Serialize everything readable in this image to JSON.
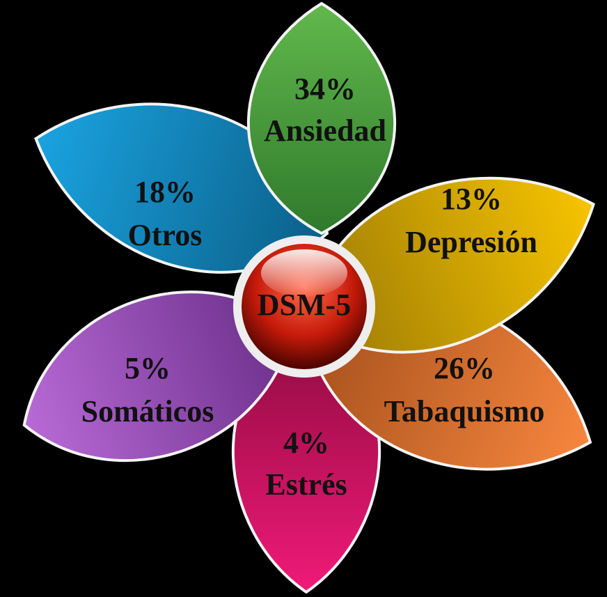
{
  "center": "DSM-5",
  "petals": [
    {
      "percent": "34%",
      "label": "Ansiedad"
    },
    {
      "percent": "13%",
      "label": "Depresión"
    },
    {
      "percent": "26%",
      "label": "Tabaquismo"
    },
    {
      "percent": "4%",
      "label": "Estrés"
    },
    {
      "percent": "5%",
      "label": "Somáticos"
    },
    {
      "percent": "18%",
      "label": "Otros"
    }
  ]
}
